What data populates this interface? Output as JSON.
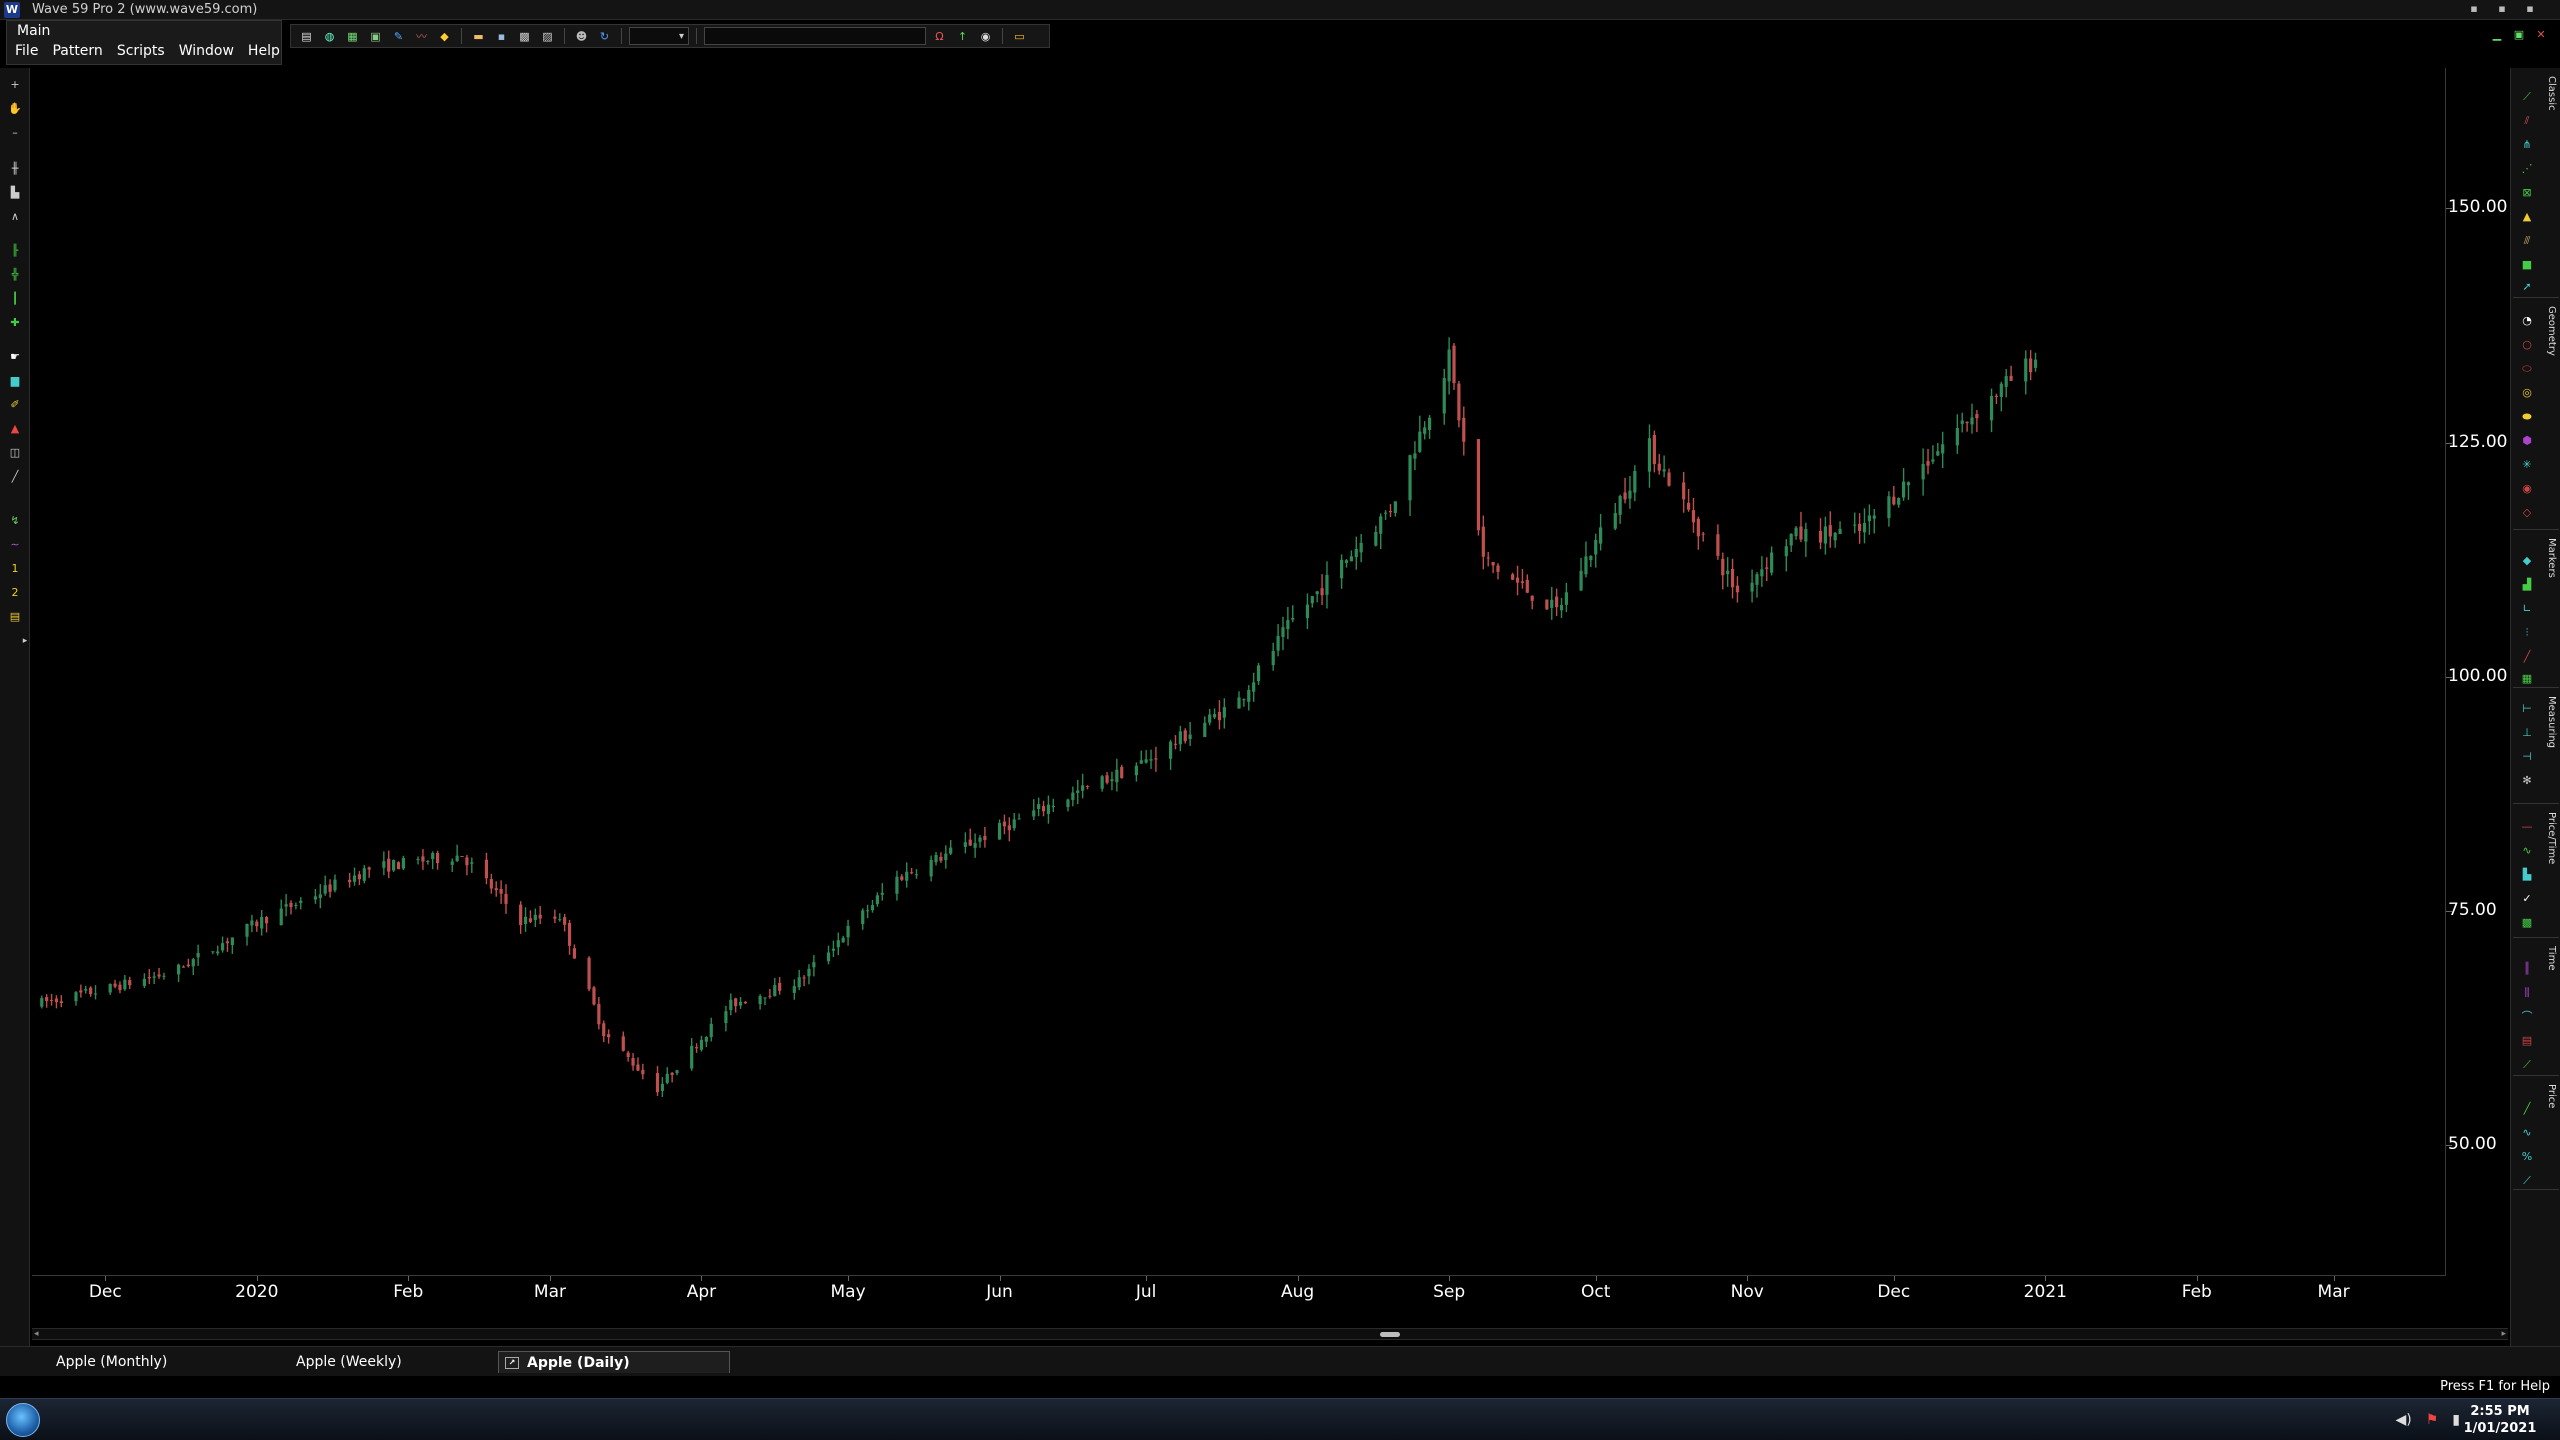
{
  "window": {
    "title": "Wave 59 Pro 2  (www.wave59.com)",
    "logo": "W"
  },
  "main_panel": {
    "title": "Main",
    "menu": [
      "File",
      "Pattern",
      "Scripts",
      "Window",
      "Help"
    ]
  },
  "right_panels": [
    "Classic",
    "Geometry",
    "Markers",
    "Measuring",
    "Price/Time",
    "Time",
    "Price"
  ],
  "chart_data": {
    "type": "candlestick",
    "yaxis_labels": [
      "150.00",
      "125.00",
      "100.00",
      "75.00",
      "50.00"
    ],
    "ylim": [
      36,
      165
    ],
    "xaxis_labels": [
      "Dec",
      "2020",
      "Feb",
      "Mar",
      "Apr",
      "May",
      "Jun",
      "Jul",
      "Aug",
      "Sep",
      "Oct",
      "Nov",
      "Dec",
      "2021",
      "Feb",
      "Mar"
    ],
    "x_dates": [
      "2019-12-01",
      "2020-01-01",
      "2020-02-01",
      "2020-03-01",
      "2020-04-01",
      "2020-05-01",
      "2020-06-01",
      "2020-07-01",
      "2020-08-01",
      "2020-09-01",
      "2020-10-01",
      "2020-11-01",
      "2020-12-01",
      "2021-01-01",
      "2021-02-01",
      "2021-03-01"
    ],
    "xlim": [
      "2019-11-16",
      "2021-03-24"
    ],
    "up_color": "#2e8b57",
    "down_color": "#c0504d",
    "series": [
      {
        "name": "Apple (Daily)",
        "points": [
          [
            "2019-11-16",
            65.0
          ],
          [
            "2019-11-30",
            66.5
          ],
          [
            "2019-12-15",
            68.5
          ],
          [
            "2020-01-02",
            74.0
          ],
          [
            "2020-01-24",
            79.5
          ],
          [
            "2020-02-12",
            81.0
          ],
          [
            "2020-02-24",
            74.0
          ],
          [
            "2020-03-03",
            74.5
          ],
          [
            "2020-03-12",
            62.0
          ],
          [
            "2020-03-23",
            56.0
          ],
          [
            "2020-04-07",
            65.0
          ],
          [
            "2020-04-21",
            67.5
          ],
          [
            "2020-05-11",
            78.5
          ],
          [
            "2020-06-10",
            86.0
          ],
          [
            "2020-07-01",
            91.0
          ],
          [
            "2020-07-20",
            97.5
          ],
          [
            "2020-07-31",
            106.0
          ],
          [
            "2020-08-20",
            118.0
          ],
          [
            "2020-09-01",
            134.0
          ],
          [
            "2020-09-08",
            112.5
          ],
          [
            "2020-09-23",
            107.0
          ],
          [
            "2020-10-12",
            124.5
          ],
          [
            "2020-10-30",
            109.0
          ],
          [
            "2020-11-10",
            115.0
          ],
          [
            "2020-11-24",
            115.5
          ],
          [
            "2020-12-15",
            127.0
          ],
          [
            "2020-12-30",
            134.0
          ]
        ]
      }
    ]
  },
  "tabs": [
    "Apple (Monthly)",
    "Apple (Weekly)",
    "Apple (Daily)"
  ],
  "status": {
    "help": "Press F1 for Help"
  },
  "clock": {
    "time": "2:55 PM",
    "date": "1/01/2021"
  }
}
